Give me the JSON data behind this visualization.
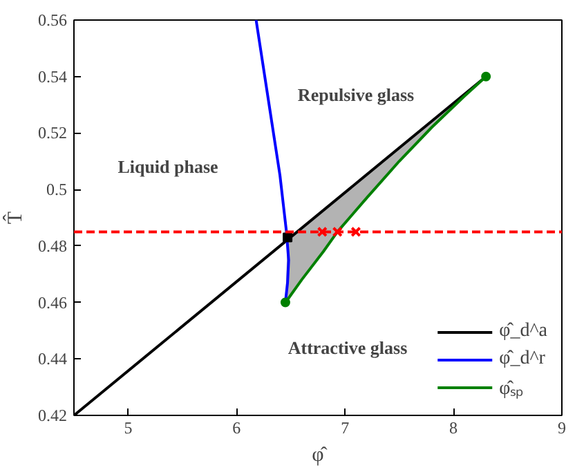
{
  "chart_data": {
    "type": "line",
    "xlabel": "φ̂",
    "ylabel": "T̂",
    "xlim": [
      4.5,
      9
    ],
    "ylim": [
      0.42,
      0.56
    ],
    "xticks": [
      5,
      6,
      7,
      8,
      9
    ],
    "yticks": [
      0.42,
      0.44,
      0.46,
      {
        "value": 0.48,
        "label": "0.48"
      },
      0.5,
      0.52,
      0.54,
      0.56
    ],
    "grid": false,
    "legend": "bottom right",
    "line_style": "solid",
    "series": [
      {
        "name": "φ̂_d^a",
        "color": "#000000",
        "x": [
          4.5,
          8.3
        ],
        "values": [
          0.42,
          0.54
        ]
      },
      {
        "name": "φ̂_d^r",
        "color": "#0000ff",
        "x": [
          6.18,
          6.3,
          6.4,
          6.46,
          6.48,
          6.47,
          6.45
        ],
        "values": [
          0.56,
          0.53,
          0.505,
          0.485,
          0.475,
          0.467,
          0.46
        ]
      },
      {
        "name": "φ̂ₛₚ",
        "color": "#008000",
        "x": [
          6.45,
          6.47,
          6.6,
          6.8,
          6.93,
          7.2,
          7.5,
          7.8,
          8.1,
          8.3
        ],
        "values": [
          0.46,
          0.461,
          0.468,
          0.478,
          0.485,
          0.497,
          0.51,
          0.522,
          0.533,
          0.54
        ],
        "lower": [
          0.46,
          0.461,
          0.468,
          0.478,
          0.485,
          0.497,
          0.51,
          0.522,
          0.533,
          0.54
        ],
        "upper": [
          0.46,
          0.482,
          0.486,
          0.493,
          0.497,
          0.505,
          0.515,
          0.524,
          0.534,
          0.54
        ]
      },
      {
        "type": "scatter",
        "marker": "circle",
        "color": "#008000",
        "x": [
          6.45,
          8.3
        ],
        "values": [
          0.46,
          0.54
        ]
      },
      {
        "type": "scatter",
        "marker": "square",
        "color": "#000000",
        "x": [
          6.47
        ],
        "values": [
          0.483
        ]
      },
      {
        "type": "scatter",
        "marker": "cross",
        "color": "#ff0000",
        "x": [
          6.79,
          6.93,
          7.1
        ],
        "values": [
          0.485,
          0.485,
          0.485
        ]
      }
    ],
    "ref_lines": [
      {
        "axis": "y",
        "value": 0.485,
        "color": "#ff0000",
        "line_style": "dashed"
      }
    ],
    "annotations": [
      "Repulsive glass",
      "Liquid phase",
      "Attractive glass"
    ]
  }
}
